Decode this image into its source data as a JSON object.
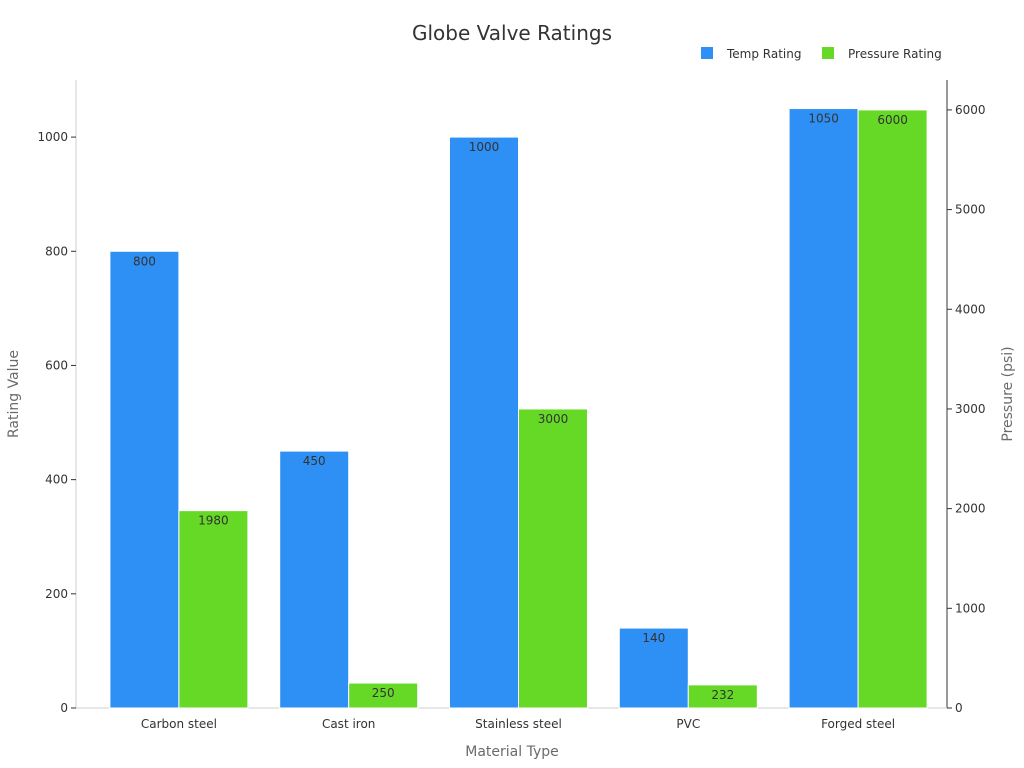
{
  "chart_data": {
    "type": "bar",
    "title": "Globe Valve Ratings",
    "xlabel": "Material Type",
    "ylabel": "Rating Value",
    "y2label": "Pressure (psi)",
    "categories": [
      "Carbon steel",
      "Cast iron",
      "Stainless steel",
      "PVC",
      "Forged steel"
    ],
    "series": [
      {
        "name": "Temp Rating",
        "axis": "left",
        "color": "#2e90f5",
        "values": [
          800,
          450,
          1000,
          140,
          1050
        ]
      },
      {
        "name": "Pressure Rating",
        "axis": "right",
        "color": "#66d926",
        "values": [
          1980,
          250,
          3000,
          232,
          6000
        ]
      }
    ],
    "ylim": [
      0,
      1100
    ],
    "y2lim": [
      0,
      6300
    ],
    "yticks": [
      0,
      200,
      400,
      600,
      800,
      1000
    ],
    "y2ticks": [
      0,
      1000,
      2000,
      3000,
      4000,
      5000,
      6000
    ],
    "legend_position": "top-right",
    "grid": false
  }
}
